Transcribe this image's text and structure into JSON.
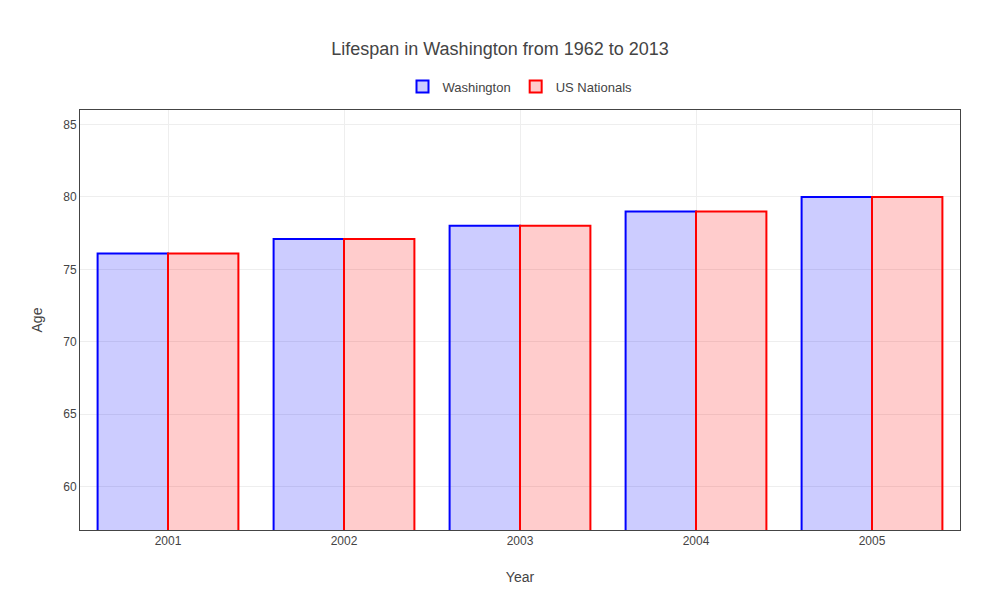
{
  "chart_data": {
    "type": "bar",
    "title": "Lifespan in Washington from 1962 to 2013",
    "x_label": "Year",
    "y_label": "Age",
    "categories": [
      "2001",
      "2002",
      "2003",
      "2004",
      "2005"
    ],
    "series": [
      {
        "name": "Washington",
        "color": "#0000ff",
        "values": [
          76.1,
          77.1,
          78.0,
          79.0,
          80.0
        ]
      },
      {
        "name": "US Nationals",
        "color": "#ff0000",
        "values": [
          76.1,
          77.1,
          78.0,
          79.0,
          80.0
        ]
      }
    ],
    "ylim": [
      57,
      86
    ],
    "yticks": [
      60,
      65,
      70,
      75,
      80,
      85
    ],
    "grid": true,
    "legend": "upper center"
  }
}
